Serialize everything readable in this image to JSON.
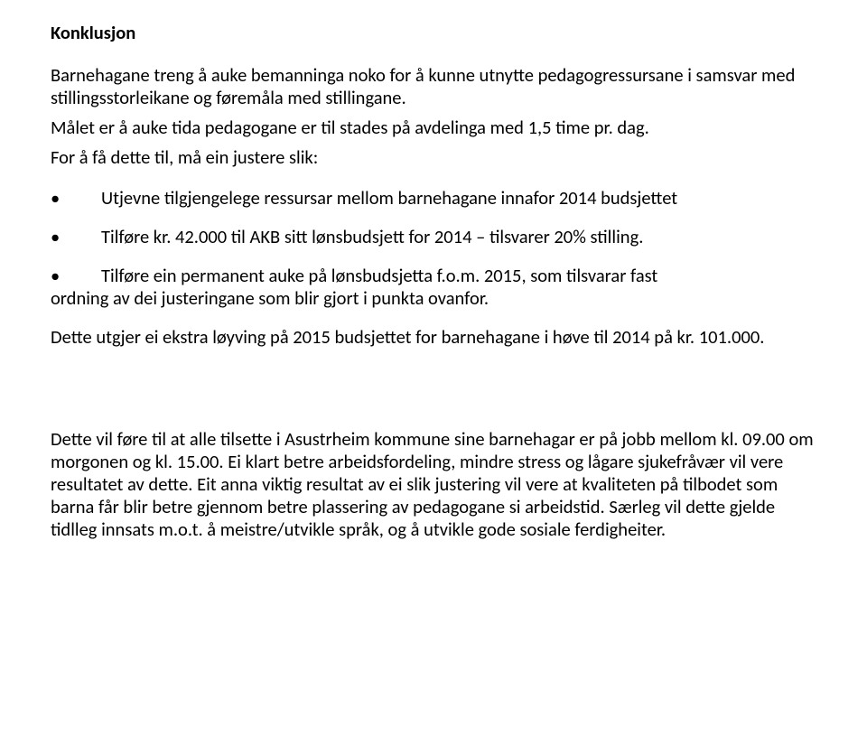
{
  "heading": "Konklusjon",
  "intro_p1": "Barnehagane treng å auke bemanninga noko for å kunne utnytte pedagogressursane i samsvar med stillingsstorleikane og føremåla med stillingane.",
  "intro_p2": "Målet er å auke tida pedagogane er til stades på avdelinga med 1,5 time pr. dag.",
  "intro_p3": "For å få dette til, må ein justere slik:",
  "bullets": {
    "b1_line": "Utjevne tilgjengelege ressursar mellom barnehagane innafor 2014 budsjettet",
    "b2_line": "Tilføre kr. 42.000 til AKB sitt lønsbudsjett for 2014 – tilsvarer 20% stilling.",
    "b3_line": "Tilføre ein permanent auke på lønsbudsjetta f.o.m. 2015, som tilsvarar fast",
    "b3_cont": "ordning av dei justeringane som blir gjort i punkta ovanfor."
  },
  "after_bullets": "Dette utgjer ei ekstra løyving på 2015 budsjettet for barnehagane i høve til 2014 på kr. 101.000.",
  "closing": "Dette vil føre til at alle tilsette i Asustrheim kommune sine barnehagar er på jobb mellom kl. 09.00 om morgonen og kl. 15.00. Ei klart betre arbeidsfordeling, mindre stress og lågare sjukefråvær vil vere resultatet av dette. Eit anna viktig resultat av ei slik justering vil vere at kvaliteten på tilbodet som barna får blir betre gjennom betre plassering av pedagogane si arbeidstid. Særleg vil dette gjelde tidlleg innsats m.o.t. å meistre/utvikle språk, og å utvikle gode sosiale ferdigheiter."
}
